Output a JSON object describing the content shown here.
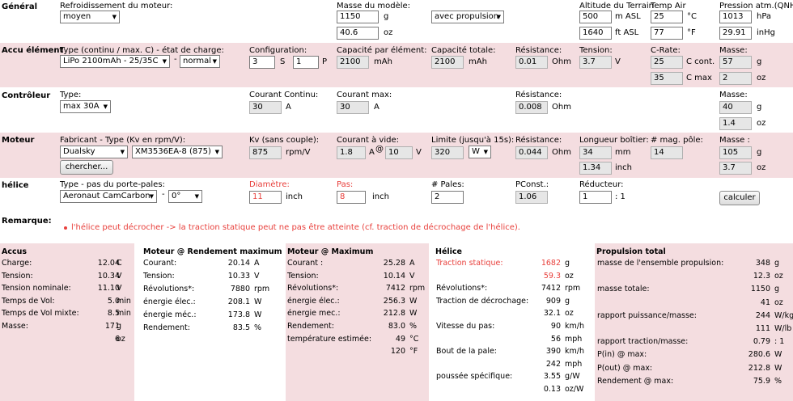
{
  "general": {
    "section": "Général",
    "cooling_label": "Refroidissement du moteur:",
    "cooling_value": "moyen",
    "mass_label": "Masse du modèle:",
    "mass_g": "1150",
    "mass_g_unit": "g",
    "mass_oz": "40.6",
    "mass_oz_unit": "oz",
    "propulsion_value": "avec propulsion",
    "altitude_label": "Altitude du Terrain",
    "altitude_m": "500",
    "altitude_m_unit": "m ASL",
    "altitude_ft": "1640",
    "altitude_ft_unit": "ft ASL",
    "temp_label": "Temp Air",
    "temp_c": "25",
    "temp_c_unit": "°C",
    "temp_f": "77",
    "temp_f_unit": "°F",
    "pressure_label": "Pression atm.(QNH):",
    "pressure_hpa": "1013",
    "pressure_hpa_unit": "hPa",
    "pressure_inhg": "29.91",
    "pressure_inhg_unit": "inHg"
  },
  "battery": {
    "section": "Accu élément",
    "type_label": "Type (continu / max. C) - état de charge:",
    "type_value": "LiPo 2100mAh - 25/35C",
    "dash": "-",
    "charge_state": "normal",
    "config_label": "Configuration:",
    "config_s": "3",
    "s_unit": "S",
    "config_p": "1",
    "p_unit": "P",
    "cap_elem_label": "Capacité par élément:",
    "cap_elem": "2100",
    "cap_elem_unit": "mAh",
    "cap_total_label": "Capacité totale:",
    "cap_total": "2100",
    "cap_total_unit": "mAh",
    "res_label": "Résistance:",
    "res_value": "0.01",
    "res_unit": "Ohm",
    "voltage_label": "Tension:",
    "voltage_value": "3.7",
    "voltage_unit": "V",
    "crate_label": "C-Rate:",
    "crate_cont": "25",
    "crate_cont_unit": "C cont.",
    "crate_max": "35",
    "crate_max_unit": "C max",
    "mass_label": "Masse:",
    "mass_g": "57",
    "mass_g_unit": "g",
    "mass_oz": "2",
    "mass_oz_unit": "oz"
  },
  "controller": {
    "section": "Contrôleur",
    "type_label": "Type:",
    "type_value": "max 30A",
    "cont_label": "Courant Continu:",
    "cont_value": "30",
    "cont_unit": "A",
    "max_label": "Courant max:",
    "max_value": "30",
    "max_unit": "A",
    "res_label": "Résistance:",
    "res_value": "0.008",
    "res_unit": "Ohm",
    "mass_label": "Masse:",
    "mass_g": "40",
    "mass_g_unit": "g",
    "mass_oz": "1.4",
    "mass_oz_unit": "oz"
  },
  "motor": {
    "section": "Moteur",
    "maker_label": "Fabricant - Type (Kv en rpm/V):",
    "maker_value": "Dualsky",
    "type_value": "XM3536EA-8 (875)",
    "search_button": "chercher...",
    "kv_label": "Kv (sans couple):",
    "kv_value": "875",
    "kv_unit": "rpm/V",
    "idle_label": "Courant à vide:",
    "idle_a": "1.8",
    "idle_a_unit": "A",
    "at_sign": "@",
    "idle_v": "10",
    "idle_v_unit": "V",
    "limit_label": "Limite (jusqu'à 15s):",
    "limit_value": "320",
    "limit_unit": "W",
    "res_label": "Résistance:",
    "res_value": "0.044",
    "res_unit": "Ohm",
    "length_label": "Longueur boîtier:",
    "length_mm": "34",
    "length_mm_unit": "mm",
    "length_inch": "1.34",
    "length_inch_unit": "inch",
    "poles_label": "# mag. pôle:",
    "poles_value": "14",
    "mass_label": "Masse :",
    "mass_g": "105",
    "mass_g_unit": "g",
    "mass_oz": "3.7",
    "mass_oz_unit": "oz"
  },
  "propeller": {
    "section": "hélice",
    "type_label": "Type - pas du porte-pales:",
    "type_value": "Aeronaut CamCarbon",
    "dash": "-",
    "pitch_hub": "0°",
    "diam_label": "Diamètre:",
    "diam_value": "11",
    "diam_unit": "inch",
    "pitch_label": "Pas:",
    "pitch_value": "8",
    "pitch_unit": "inch",
    "blades_label": "# Pales:",
    "blades_value": "2",
    "pconst_label": "PConst.:",
    "pconst_value": "1.06",
    "gear_label": "Réducteur:",
    "gear_value": "1",
    "gear_ratio": ": 1",
    "calc_button": "calculer"
  },
  "remark": {
    "label": "Remarque:",
    "text": "l'hélice peut décrocher -> la traction statique peut ne pas être atteinte (cf. traction de décrochage de l'hélice)."
  },
  "results": {
    "accus": {
      "title": "Accus",
      "rows": [
        {
          "label": "Charge:",
          "value": "12.04",
          "unit": "C"
        },
        {
          "label": "Tension:",
          "value": "10.34",
          "unit": "V"
        },
        {
          "label": "Tension nominale:",
          "value": "11.10",
          "unit": "V"
        },
        {
          "label": "Temps de Vol:",
          "value": "5.0",
          "unit": "min"
        },
        {
          "label": "Temps de Vol mixte:",
          "value": "8.5",
          "unit": "min"
        },
        {
          "label": "Masse:",
          "value": "171",
          "unit": "g"
        },
        {
          "label": "",
          "value": "6",
          "unit": "oz"
        }
      ]
    },
    "motor_eff": {
      "title": "Moteur @ Rendement maximum",
      "rows": [
        {
          "label": "Courant:",
          "value": "20.14",
          "unit": "A"
        },
        {
          "label": "Tension:",
          "value": "10.33",
          "unit": "V"
        },
        {
          "label": "Révolutions*:",
          "value": "7880",
          "unit": "rpm"
        },
        {
          "label": "énergie élec.:",
          "value": "208.1",
          "unit": "W"
        },
        {
          "label": "énergie méc.:",
          "value": "173.8",
          "unit": "W"
        },
        {
          "label": "Rendement:",
          "value": "83.5",
          "unit": "%"
        }
      ]
    },
    "motor_max": {
      "title": "Moteur @ Maximum",
      "rows": [
        {
          "label": "Courant :",
          "value": "25.28",
          "unit": "A"
        },
        {
          "label": "Tension:",
          "value": "10.14",
          "unit": "V"
        },
        {
          "label": "Révolutions*:",
          "value": "7412",
          "unit": "rpm"
        },
        {
          "label": "énergie élec.:",
          "value": "256.3",
          "unit": "W"
        },
        {
          "label": "énergie mec.:",
          "value": "212.8",
          "unit": "W"
        },
        {
          "label": "Rendement:",
          "value": "83.0",
          "unit": "%"
        },
        {
          "label": "température estimée:",
          "value": "49",
          "unit": "°C"
        },
        {
          "label": "",
          "value": "120",
          "unit": "°F"
        }
      ]
    },
    "propeller": {
      "title": "Hélice",
      "rows": [
        {
          "label": "Traction statique:",
          "value": "1682",
          "unit": "g"
        },
        {
          "label": "",
          "value": "59.3",
          "unit": "oz"
        },
        {
          "label": "Révolutions*:",
          "value": "7412",
          "unit": "rpm"
        },
        {
          "label": "Traction de décrochage:",
          "value": "909",
          "unit": "g"
        },
        {
          "label": "",
          "value": "32.1",
          "unit": "oz"
        },
        {
          "label": "Vitesse du pas:",
          "value": "90",
          "unit": "km/h"
        },
        {
          "label": "",
          "value": "56",
          "unit": "mph"
        },
        {
          "label": "Bout de la pale:",
          "value": "390",
          "unit": "km/h"
        },
        {
          "label": "",
          "value": "242",
          "unit": "mph"
        },
        {
          "label": "poussée spécifique:",
          "value": "3.55",
          "unit": "g/W"
        },
        {
          "label": "",
          "value": "0.13",
          "unit": "oz/W"
        }
      ]
    },
    "total": {
      "title": "Propulsion total",
      "rows": [
        {
          "label": "masse de l'ensemble propulsion:",
          "value": "348",
          "unit": "g"
        },
        {
          "label": "",
          "value": "12.3",
          "unit": "oz"
        },
        {
          "label": "masse totale:",
          "value": "1150",
          "unit": "g"
        },
        {
          "label": "",
          "value": "41",
          "unit": "oz"
        },
        {
          "label": "rapport puissance/masse:",
          "value": "244",
          "unit": "W/kg"
        },
        {
          "label": "",
          "value": "111",
          "unit": "W/lb"
        },
        {
          "label": "rapport traction/masse:",
          "value": "0.79",
          "unit": ": 1"
        },
        {
          "label": "P(in) @ max:",
          "value": "280.6",
          "unit": "W"
        },
        {
          "label": "P(out) @ max:",
          "value": "212.8",
          "unit": "W"
        },
        {
          "label": "Rendement @ max:",
          "value": "75.9",
          "unit": "%"
        }
      ]
    }
  }
}
